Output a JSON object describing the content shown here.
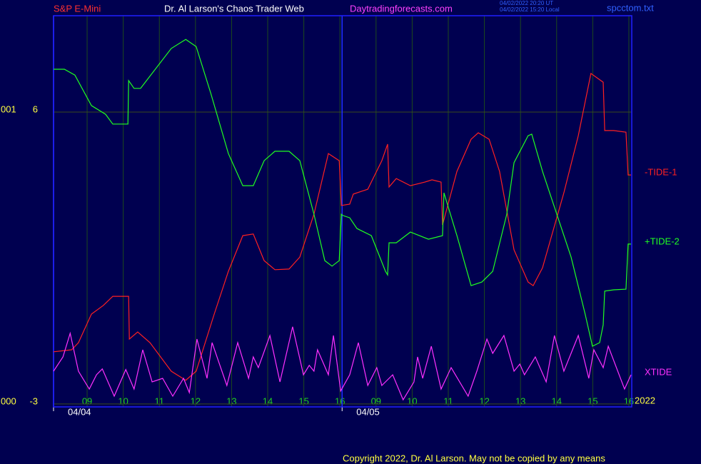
{
  "chart_data": {
    "type": "line",
    "title": "Dr. Al Larson's Chaos Trader Web",
    "instrument": "S&P E-Mini",
    "website": "Daytradingforecasts.com",
    "timestamps": [
      "04/02/2022 20:20 UT",
      "04/02/2022 15:20 Local"
    ],
    "file": "spcctom.txt",
    "year": "2022",
    "left_labels": [
      "001",
      "000"
    ],
    "copyright": "Copyright 2022, Dr. Al Larson. May not be copied by any means",
    "xlim": [
      -0.93,
      15.08
    ],
    "ylim": [
      -3.09,
      8.97
    ],
    "yticks": [
      6,
      -3
    ],
    "xticks": [
      {
        "value": 0,
        "label": "09"
      },
      {
        "value": 1,
        "label": "10"
      },
      {
        "value": 2,
        "label": "11"
      },
      {
        "value": 3,
        "label": "12"
      },
      {
        "value": 4,
        "label": "13"
      },
      {
        "value": 5,
        "label": "14"
      },
      {
        "value": 6,
        "label": "15"
      },
      {
        "value": 7,
        "label": "16"
      },
      {
        "value": 8,
        "label": "09"
      },
      {
        "value": 9,
        "label": "10"
      },
      {
        "value": 10,
        "label": "11"
      },
      {
        "value": 11,
        "label": "12"
      },
      {
        "value": 12,
        "label": "13"
      },
      {
        "value": 13,
        "label": "14"
      },
      {
        "value": 14,
        "label": "15"
      },
      {
        "value": 15,
        "label": "16"
      }
    ],
    "day_markers": [
      {
        "value": -0.93,
        "label": "04/04"
      },
      {
        "value": 7.06,
        "label": "04/05"
      }
    ],
    "grid": true,
    "series": [
      {
        "name": "-TIDE-1",
        "color": "#ff2020",
        "x": [
          -0.93,
          -0.43,
          -0.24,
          0.12,
          0.45,
          0.71,
          1.15,
          1.17,
          1.4,
          1.74,
          2.33,
          2.73,
          3.02,
          3.52,
          3.91,
          4.31,
          4.6,
          4.9,
          5.2,
          5.59,
          5.89,
          6.28,
          6.68,
          6.98,
          7.04,
          7.27,
          7.37,
          7.77,
          8.16,
          8.32,
          8.36,
          8.56,
          8.95,
          9.35,
          9.55,
          9.8,
          9.84,
          10.24,
          10.63,
          10.83,
          11.13,
          11.42,
          11.82,
          12.21,
          12.35,
          12.61,
          13.2,
          13.6,
          13.95,
          14.29,
          14.33,
          14.58,
          14.92,
          14.98,
          15.06
        ],
        "values": [
          -1.39,
          -1.33,
          -1.11,
          -0.23,
          0.04,
          0.32,
          0.32,
          -1.0,
          -0.78,
          -1.11,
          -1.99,
          -2.27,
          -1.99,
          -0.23,
          1.09,
          2.19,
          2.24,
          1.42,
          1.14,
          1.16,
          1.53,
          2.85,
          4.72,
          4.5,
          3.12,
          3.16,
          3.47,
          3.62,
          4.5,
          5.01,
          3.69,
          3.95,
          3.73,
          3.84,
          3.91,
          3.84,
          2.52,
          4.17,
          5.16,
          5.36,
          5.16,
          4.17,
          1.75,
          0.76,
          0.65,
          1.2,
          3.51,
          5.27,
          7.19,
          6.92,
          5.43,
          5.43,
          5.38,
          4.06,
          4.06
        ]
      },
      {
        "name": "+TIDE-2",
        "color": "#20ff20",
        "x": [
          -0.93,
          -0.63,
          -0.34,
          0.12,
          0.51,
          0.71,
          1.13,
          1.15,
          1.3,
          1.48,
          2.33,
          2.73,
          3.02,
          3.42,
          3.91,
          4.31,
          4.6,
          4.9,
          5.2,
          5.59,
          5.89,
          6.28,
          6.58,
          6.78,
          6.98,
          7.04,
          7.08,
          7.27,
          7.47,
          7.87,
          8.26,
          8.32,
          8.36,
          8.56,
          8.95,
          9.45,
          9.84,
          9.88,
          10.24,
          10.63,
          10.93,
          11.23,
          11.62,
          11.82,
          12.21,
          12.31,
          12.61,
          13.4,
          13.79,
          13.99,
          14.19,
          14.29,
          14.33,
          14.58,
          14.92,
          14.98,
          15.06
        ],
        "values": [
          7.32,
          7.32,
          7.14,
          6.2,
          5.93,
          5.63,
          5.63,
          6.97,
          6.73,
          6.73,
          7.96,
          8.24,
          8.02,
          6.59,
          4.72,
          3.73,
          3.73,
          4.5,
          4.79,
          4.79,
          4.5,
          2.85,
          1.42,
          1.25,
          1.42,
          2.85,
          2.81,
          2.74,
          2.41,
          2.19,
          1.09,
          0.98,
          1.97,
          1.97,
          2.3,
          2.08,
          2.19,
          3.51,
          2.19,
          0.65,
          0.76,
          1.09,
          2.85,
          4.44,
          5.27,
          5.32,
          4.17,
          1.53,
          -0.23,
          -1.22,
          -1.11,
          -0.56,
          0.48,
          0.52,
          0.54,
          1.93,
          1.93
        ]
      },
      {
        "name": "XTIDE",
        "color": "#ff30ff",
        "x": [
          -0.93,
          -0.67,
          -0.47,
          -0.24,
          0.06,
          0.26,
          0.42,
          0.75,
          1.07,
          1.3,
          1.54,
          1.8,
          2.09,
          2.37,
          2.67,
          2.83,
          3.04,
          3.32,
          3.46,
          3.87,
          4.17,
          4.47,
          4.6,
          4.74,
          5.06,
          5.34,
          5.69,
          5.99,
          6.15,
          6.28,
          6.38,
          6.68,
          6.82,
          7.02,
          7.27,
          7.51,
          7.77,
          8.02,
          8.16,
          8.46,
          8.75,
          9.05,
          9.15,
          9.29,
          9.53,
          9.8,
          10.08,
          10.55,
          10.79,
          11.07,
          11.23,
          11.54,
          11.82,
          11.98,
          12.11,
          12.41,
          12.71,
          12.94,
          13.2,
          13.6,
          13.89,
          14.03,
          14.29,
          14.43,
          14.88,
          15.06
        ],
        "values": [
          -1.99,
          -1.55,
          -0.82,
          -1.99,
          -2.54,
          -2.1,
          -1.92,
          -2.76,
          -1.94,
          -2.54,
          -1.33,
          -2.32,
          -2.21,
          -2.76,
          -2.21,
          -2.65,
          -1.0,
          -2.21,
          -1.11,
          -2.43,
          -1.11,
          -2.21,
          -1.55,
          -1.88,
          -0.89,
          -2.32,
          -0.62,
          -2.1,
          -1.81,
          -1.99,
          -1.33,
          -2.1,
          -0.89,
          -2.6,
          -2.1,
          -1.11,
          -2.43,
          -1.88,
          -2.43,
          -2.1,
          -2.87,
          -2.32,
          -1.55,
          -2.21,
          -1.22,
          -2.54,
          -1.88,
          -2.76,
          -1.99,
          -1.0,
          -1.44,
          -0.89,
          -1.99,
          -1.77,
          -2.1,
          -1.55,
          -2.32,
          -0.89,
          -1.99,
          -0.89,
          -2.21,
          -1.33,
          -1.88,
          -1.22,
          -2.54,
          -2.1
        ]
      }
    ]
  }
}
